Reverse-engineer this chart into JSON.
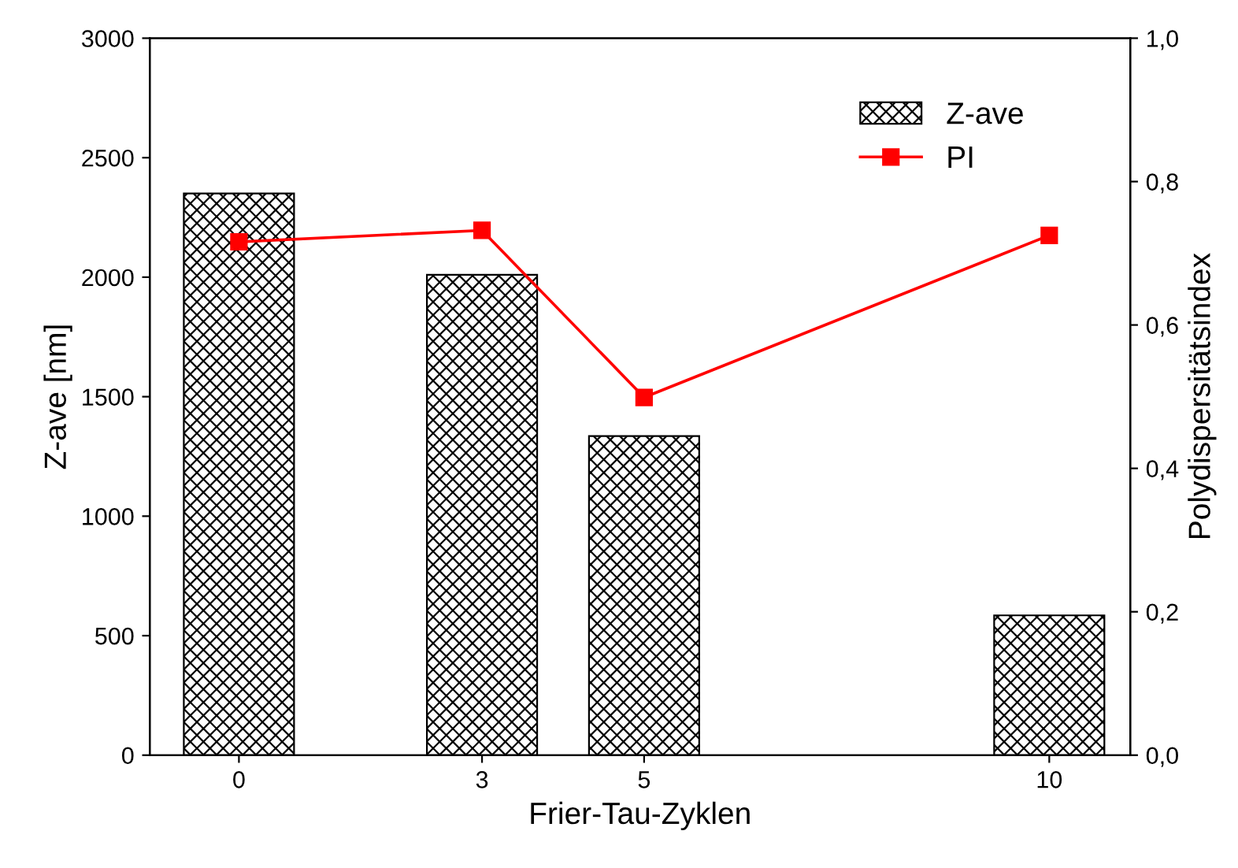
{
  "chart_data": {
    "type": "bar",
    "xlabel": "Frier-Tau-Zyklen",
    "ylabel": "Z-ave [nm]",
    "y2label": "Polydispersitätsindex",
    "x": [
      0,
      3,
      5,
      10
    ],
    "series": [
      {
        "name": "Z-ave",
        "color": "#000000",
        "values": [
          2350,
          2010,
          1335,
          585
        ]
      },
      {
        "name": "PI",
        "type": "line",
        "axis": "y2",
        "color": "#ff0000",
        "values": [
          0.716,
          0.732,
          0.499,
          0.725
        ]
      }
    ],
    "xlim": [
      -1.1,
      11
    ],
    "xticks": [
      0,
      3,
      5,
      10
    ],
    "ylim": [
      0,
      3000
    ],
    "yticks": [
      0,
      500,
      1000,
      1500,
      2000,
      2500,
      3000
    ],
    "y2lim": [
      0,
      1.0
    ],
    "y2ticks": [
      {
        "value": 0,
        "label": "0,0"
      },
      {
        "value": 0.2,
        "label": "0,2"
      },
      {
        "value": 0.4,
        "label": "0,4"
      },
      {
        "value": 0.6,
        "label": "0,6"
      },
      {
        "value": 0.8,
        "label": "0,8"
      },
      {
        "value": 1.0,
        "label": "1,0"
      }
    ],
    "legend": "top right",
    "marker": "square",
    "line_style": "solid",
    "grid": false
  }
}
